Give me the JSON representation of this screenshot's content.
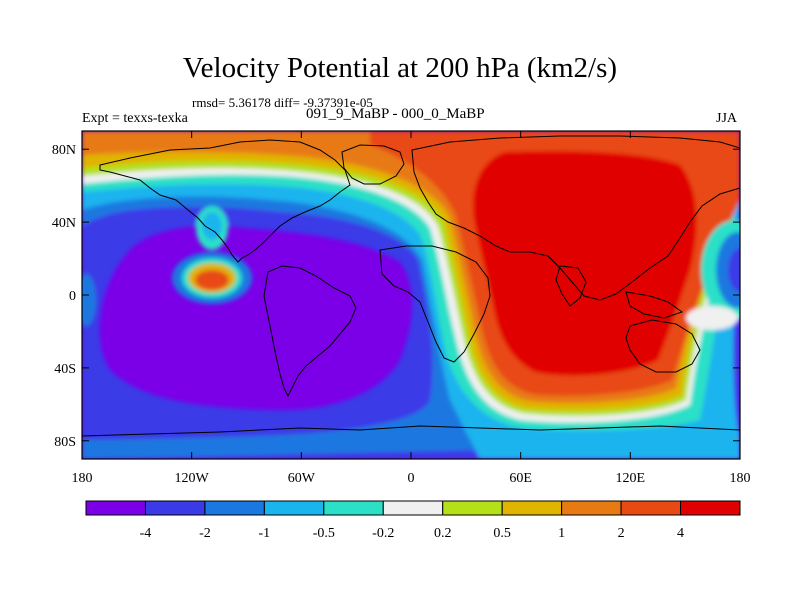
{
  "title": "Velocity Potential at 200 hPa (km2/s)",
  "stats": "rmsd= 5.36178  diff= -9.37391e-05",
  "experiment": "Expt = texxs-texka",
  "subtitle": "091_9_MaBP - 000_0_MaBP",
  "season": "JJA",
  "map": {
    "projection": "cylindrical-equidistant",
    "lon_range": [
      -180,
      180
    ],
    "lat_range": [
      -90,
      90
    ],
    "lat_ticks": [
      {
        "value": 80,
        "label": "80N"
      },
      {
        "value": 40,
        "label": "40N"
      },
      {
        "value": 0,
        "label": "0"
      },
      {
        "value": -40,
        "label": "40S"
      },
      {
        "value": -80,
        "label": "80S"
      }
    ],
    "lon_ticks": [
      {
        "value": -180,
        "label": "180"
      },
      {
        "value": -120,
        "label": "120W"
      },
      {
        "value": -60,
        "label": "60W"
      },
      {
        "value": 0,
        "label": "0"
      },
      {
        "value": 60,
        "label": "60E"
      },
      {
        "value": 120,
        "label": "120E"
      },
      {
        "value": 180,
        "label": "180"
      }
    ]
  },
  "colorbar": {
    "levels": [
      "-4",
      "-2",
      "-1",
      "-0.5",
      "-0.2",
      "0.2",
      "0.5",
      "1",
      "2",
      "4"
    ],
    "colors": [
      "#7b00e8",
      "#3a3ae8",
      "#1a78e0",
      "#1ab4ee",
      "#2ce0c8",
      "#f0f0f0",
      "#b4e01a",
      "#e0b400",
      "#e87a14",
      "#e84a14",
      "#e00000"
    ]
  }
}
